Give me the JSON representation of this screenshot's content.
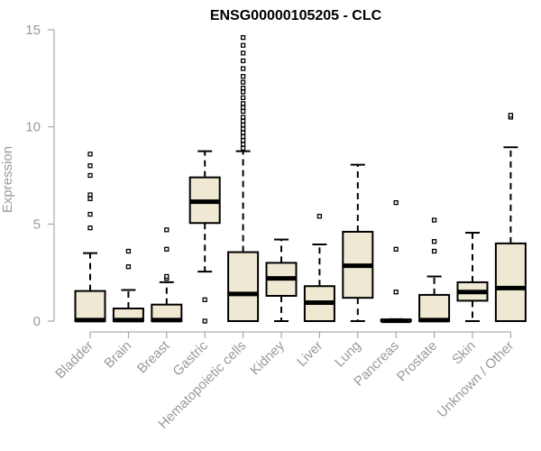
{
  "chart_data": {
    "type": "boxplot",
    "title": "ENSG00000105205 - CLC",
    "xlabel": "",
    "ylabel": "Expression",
    "ylim": [
      0,
      15
    ],
    "yticks": [
      0,
      5,
      10,
      15
    ],
    "box_fill": "#efe8d2",
    "stroke_color": "#000000",
    "axis_color": "#999999",
    "categories": [
      "Bladder",
      "Brain",
      "Breast",
      "Gastric",
      "Hematopoietic cells",
      "Kidney",
      "Liver",
      "Lung",
      "Pancreas",
      "Prostate",
      "Skin",
      "Unknown / Other"
    ],
    "boxes": [
      {
        "label": "Bladder",
        "whisker_low": 0,
        "q1": 0,
        "median": 0.05,
        "q3": 1.55,
        "whisker_high": 3.5,
        "outliers": [
          4.8,
          5.5,
          6.3,
          6.5,
          7.5,
          8.0,
          8.6
        ]
      },
      {
        "label": "Brain",
        "whisker_low": 0,
        "q1": 0,
        "median": 0.05,
        "q3": 0.65,
        "whisker_high": 1.6,
        "outliers": [
          2.8,
          3.6
        ]
      },
      {
        "label": "Breast",
        "whisker_low": 0,
        "q1": 0,
        "median": 0.05,
        "q3": 0.85,
        "whisker_high": 2.0,
        "outliers": [
          2.2,
          2.3,
          3.7,
          4.7
        ]
      },
      {
        "label": "Gastric",
        "whisker_low": 2.55,
        "q1": 5.05,
        "median": 6.15,
        "q3": 7.4,
        "whisker_high": 8.75,
        "outliers": [
          0,
          1.1
        ]
      },
      {
        "label": "Hematopoietic cells",
        "whisker_low": 0,
        "q1": 0,
        "median": 1.4,
        "q3": 3.55,
        "whisker_high": 8.75,
        "outliers": [
          8.9,
          9.1,
          9.3,
          9.5,
          9.7,
          9.9,
          10.1,
          10.3,
          10.5,
          10.8,
          11.0,
          11.2,
          11.5,
          11.8,
          12.0,
          12.3,
          12.6,
          13.0,
          13.4,
          13.8,
          14.2,
          14.6
        ]
      },
      {
        "label": "Kidney",
        "whisker_low": 0,
        "q1": 1.3,
        "median": 2.2,
        "q3": 3.0,
        "whisker_high": 4.2,
        "outliers": []
      },
      {
        "label": "Liver",
        "whisker_low": 0,
        "q1": 0,
        "median": 0.95,
        "q3": 1.8,
        "whisker_high": 3.95,
        "outliers": [
          5.4
        ]
      },
      {
        "label": "Lung",
        "whisker_low": 0,
        "q1": 1.2,
        "median": 2.85,
        "q3": 4.6,
        "whisker_high": 8.05,
        "outliers": []
      },
      {
        "label": "Pancreas",
        "whisker_low": 0,
        "q1": 0,
        "median": 0.02,
        "q3": 0.08,
        "whisker_high": 0.1,
        "outliers": [
          1.5,
          3.7,
          6.1
        ]
      },
      {
        "label": "Prostate",
        "whisker_low": 0,
        "q1": 0,
        "median": 0.05,
        "q3": 1.35,
        "whisker_high": 2.3,
        "outliers": [
          3.6,
          4.1,
          5.2
        ]
      },
      {
        "label": "Skin",
        "whisker_low": 0,
        "q1": 1.05,
        "median": 1.5,
        "q3": 2.0,
        "whisker_high": 4.55,
        "outliers": []
      },
      {
        "label": "Unknown / Other",
        "whisker_low": 0,
        "q1": 0,
        "median": 1.7,
        "q3": 4.0,
        "whisker_high": 8.95,
        "outliers": [
          10.5,
          10.6
        ]
      }
    ]
  }
}
